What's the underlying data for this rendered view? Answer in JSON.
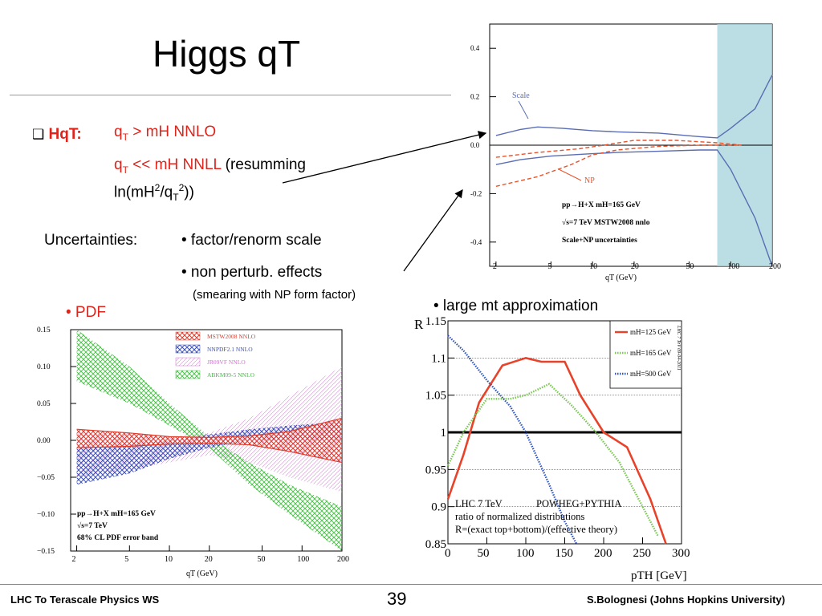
{
  "title": "Higgs qT",
  "hqt": {
    "checkbox": "❑",
    "label": "HqT:",
    "line1_a": "q",
    "line1_sub": "T",
    "line1_b": " > mH  NNLO",
    "line2_a": "q",
    "line2_sub": "T",
    "line2_b": " << mH  NNLL",
    "line2_c": " (resumming",
    "line3_a": "ln(mH",
    "line3_sup1": "2",
    "line3_b": "/q",
    "line3_sub": "T",
    "line3_sup2": "2",
    "line3_c": "))"
  },
  "uncertainties": {
    "label": "Uncertainties:",
    "bullet1": "• factor/renorm scale",
    "bullet2": "• non perturb. effects",
    "note": "(smearing with NP form factor)"
  },
  "pdf_bullet": "• PDF",
  "mt_bullet": "• large mt approximation",
  "footer": {
    "left": "LHC To Terascale Physics WS",
    "page": "39",
    "right": "S.Bolognesi (Johns Hopkins University)"
  },
  "chart_data": [
    {
      "id": "scale_np",
      "type": "line",
      "xlabel": "qT (GeV)",
      "xscale": "log",
      "xticks": [
        2,
        5,
        10,
        20,
        50,
        100,
        200
      ],
      "yticks": [
        "0.4",
        "0.2",
        "0.0",
        "-0.2",
        "-0.4"
      ],
      "ylim": [
        -0.5,
        0.5
      ],
      "shaded_region_x": [
        80,
        200
      ],
      "annotations": [
        "Scale",
        "NP",
        "pp→H+X   mH=165 GeV",
        "√s=7 TeV  MSTW2008 nnlo",
        "Scale+NP uncertainties"
      ],
      "series": [
        {
          "name": "Scale",
          "style": "band-upper",
          "color": "#5a6db3",
          "x": [
            2,
            3,
            4,
            6,
            10,
            15,
            30,
            60,
            80,
            100,
            150,
            200
          ],
          "y": [
            0.04,
            0.065,
            0.075,
            0.07,
            0.06,
            0.055,
            0.05,
            0.035,
            0.03,
            0.07,
            0.15,
            0.29
          ]
        },
        {
          "name": "Scale",
          "style": "band-lower",
          "color": "#5a6db3",
          "x": [
            2,
            3,
            5,
            10,
            15,
            30,
            60,
            80,
            100,
            150,
            200
          ],
          "y": [
            -0.08,
            -0.06,
            -0.045,
            -0.035,
            -0.03,
            -0.025,
            -0.02,
            -0.02,
            -0.1,
            -0.3,
            -0.5
          ]
        },
        {
          "name": "NP",
          "style": "dashed-upper",
          "color": "#e8532a",
          "x": [
            2,
            4,
            8,
            12,
            20,
            40,
            80,
            120
          ],
          "y": [
            -0.05,
            -0.03,
            -0.015,
            0.0,
            0.02,
            0.02,
            0.01,
            0.0
          ]
        },
        {
          "name": "NP",
          "style": "dashed-lower",
          "color": "#e8532a",
          "x": [
            2,
            4,
            7,
            10,
            15,
            30,
            60,
            120
          ],
          "y": [
            -0.17,
            -0.13,
            -0.08,
            -0.04,
            -0.02,
            -0.005,
            0.0,
            0.0
          ]
        }
      ]
    },
    {
      "id": "pdf",
      "type": "area",
      "xlabel": "qT (GeV)",
      "xscale": "log",
      "xticks": [
        2,
        5,
        10,
        20,
        50,
        100,
        200
      ],
      "yticks": [
        "0.15",
        "0.10",
        "0.05",
        "0.00",
        "−0.05",
        "−0.10",
        "−0.15"
      ],
      "ylim": [
        -0.15,
        0.15
      ],
      "legend": [
        "MSTW2008 NNLO",
        "NNPDF2.1 NNLO",
        "JR09VF NNLO",
        "ABKM09-5 NNLO"
      ],
      "annotations": [
        "pp→H+X   mH=165 GeV",
        "√s=7 TeV",
        "68% CL PDF error band"
      ],
      "series": [
        {
          "name": "MSTW2008 NNLO",
          "color": "#e03c2a",
          "x": [
            2,
            5,
            10,
            20,
            40,
            80,
            200
          ],
          "upper": [
            0.015,
            0.01,
            0.005,
            0.004,
            0.006,
            0.012,
            0.03
          ],
          "lower": [
            -0.01,
            -0.008,
            -0.005,
            -0.004,
            -0.006,
            -0.015,
            -0.03
          ]
        },
        {
          "name": "NNPDF2.1 NNLO",
          "color": "#3d52b8",
          "x": [
            2,
            5,
            10,
            20,
            40,
            80,
            200
          ],
          "upper": [
            -0.01,
            -0.005,
            0.0,
            0.008,
            0.015,
            0.02,
            0.025
          ],
          "lower": [
            -0.06,
            -0.045,
            -0.025,
            -0.01,
            0.0,
            0.0,
            0.0
          ]
        },
        {
          "name": "JR09VF NNLO",
          "color": "#d070d0",
          "x": [
            2,
            5,
            10,
            20,
            40,
            80,
            200
          ],
          "upper": [
            0.01,
            0.01,
            0.005,
            0.01,
            0.03,
            0.06,
            0.1
          ],
          "lower": [
            -0.05,
            -0.04,
            -0.03,
            -0.02,
            -0.03,
            -0.05,
            -0.07
          ]
        },
        {
          "name": "ABKM09-5 NNLO",
          "color": "#3fbf3f",
          "x": [
            2,
            5,
            10,
            20,
            40,
            80,
            200
          ],
          "upper": [
            0.15,
            0.1,
            0.05,
            0.005,
            -0.03,
            -0.06,
            -0.09
          ],
          "lower": [
            0.08,
            0.05,
            0.02,
            -0.01,
            -0.06,
            -0.1,
            -0.15
          ]
        }
      ]
    },
    {
      "id": "large_mt",
      "type": "line",
      "ylabel": "R",
      "xlabel": "pTH [GeV]",
      "xlim": [
        0,
        300
      ],
      "ylim": [
        0.85,
        1.15
      ],
      "xticks": [
        0,
        50,
        100,
        150,
        200,
        250,
        300
      ],
      "yticks": [
        "1.15",
        "1.1",
        "1.05",
        "1",
        "0.95",
        "0.9",
        "0.85"
      ],
      "reference_line": 1,
      "side_text": "LHC 7 TeV 09-04-2011",
      "annotations": [
        "LHC 7 TeV",
        "POWHEG+PYTHIA",
        "ratio of normalized distributions",
        "R=(exact top+bottom)/(effective theory)"
      ],
      "series": [
        {
          "name": "mH=125 GeV",
          "color": "#e8432a",
          "style": "solid",
          "x": [
            0,
            20,
            40,
            70,
            100,
            120,
            150,
            170,
            200,
            230,
            260,
            280
          ],
          "y": [
            0.91,
            0.97,
            1.04,
            1.09,
            1.1,
            1.095,
            1.095,
            1.05,
            1.0,
            0.98,
            0.91,
            0.85
          ]
        },
        {
          "name": "mH=165 GeV",
          "color": "#78c850",
          "style": "dotted",
          "x": [
            0,
            20,
            50,
            80,
            100,
            130,
            160,
            190,
            220,
            250,
            270
          ],
          "y": [
            0.955,
            1.0,
            1.045,
            1.045,
            1.05,
            1.065,
            1.035,
            1.0,
            0.96,
            0.9,
            0.86
          ]
        },
        {
          "name": "mH=500 GeV",
          "color": "#2e54c8",
          "style": "dotted",
          "x": [
            0,
            20,
            50,
            80,
            100,
            130,
            150,
            165
          ],
          "y": [
            1.13,
            1.11,
            1.07,
            1.035,
            1.0,
            0.93,
            0.88,
            0.85
          ]
        }
      ]
    }
  ]
}
